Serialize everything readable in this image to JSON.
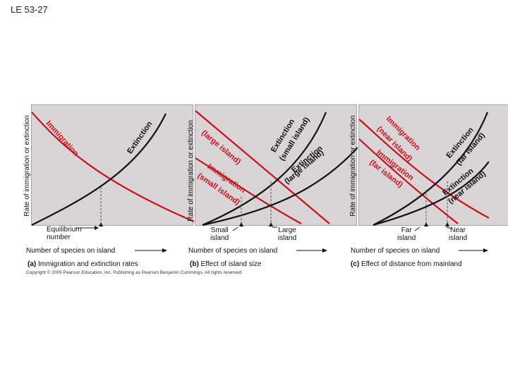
{
  "slide_label": "LE 53-27",
  "colors": {
    "immigration": "#c8101e",
    "extinction": "#111111",
    "panel": "#d9d4d6"
  },
  "panels": [
    {
      "y_axis_label": "Rate of immigration or extinction",
      "x_axis_label": "Number of species on island",
      "caption_letter": "(a)",
      "caption_text": "Immigration and extinction rates",
      "curve_labels": {
        "immigration": "Immigration",
        "extinction": "Extinction"
      },
      "equilibrium_label_line1": "Equilibrium",
      "equilibrium_label_line2": "number"
    },
    {
      "y_axis_label": "Rate of immigration or extinction",
      "x_axis_label": "Number of species on island",
      "caption_letter": "(b)",
      "caption_text": "Effect of island size",
      "curve_labels": {
        "immigration_large": "Immigration",
        "immigration_large_sub": "(large island)",
        "immigration_small": "Immigration",
        "immigration_small_sub": "(small island)",
        "extinction_small": "Extinction",
        "extinction_small_sub": "(small island)",
        "extinction_large": "Extinction",
        "extinction_large_sub": "(large island)"
      },
      "marker_left_line1": "Small",
      "marker_left_line2": "island",
      "marker_right_line1": "Large",
      "marker_right_line2": "island"
    },
    {
      "y_axis_label": "Rate of immigration or extinction",
      "x_axis_label": "Number of species on island",
      "caption_letter": "(c)",
      "caption_text": "Effect of distance from mainland",
      "curve_labels": {
        "immigration_near": "Immigration",
        "immigration_near_sub": "(near island)",
        "immigration_far": "Immigration",
        "immigration_far_sub": "(far island)",
        "extinction_far": "Extinction",
        "extinction_far_sub": "(far island)",
        "extinction_near": "Extinction",
        "extinction_near_sub": "(near island)"
      },
      "marker_left_line1": "Far",
      "marker_left_line2": "island",
      "marker_right_line1": "Near",
      "marker_right_line2": "island"
    }
  ],
  "copyright": "Copyright © 2005 Pearson Education, Inc. Publishing as Pearson Benjamin Cummings. All rights reserved."
}
